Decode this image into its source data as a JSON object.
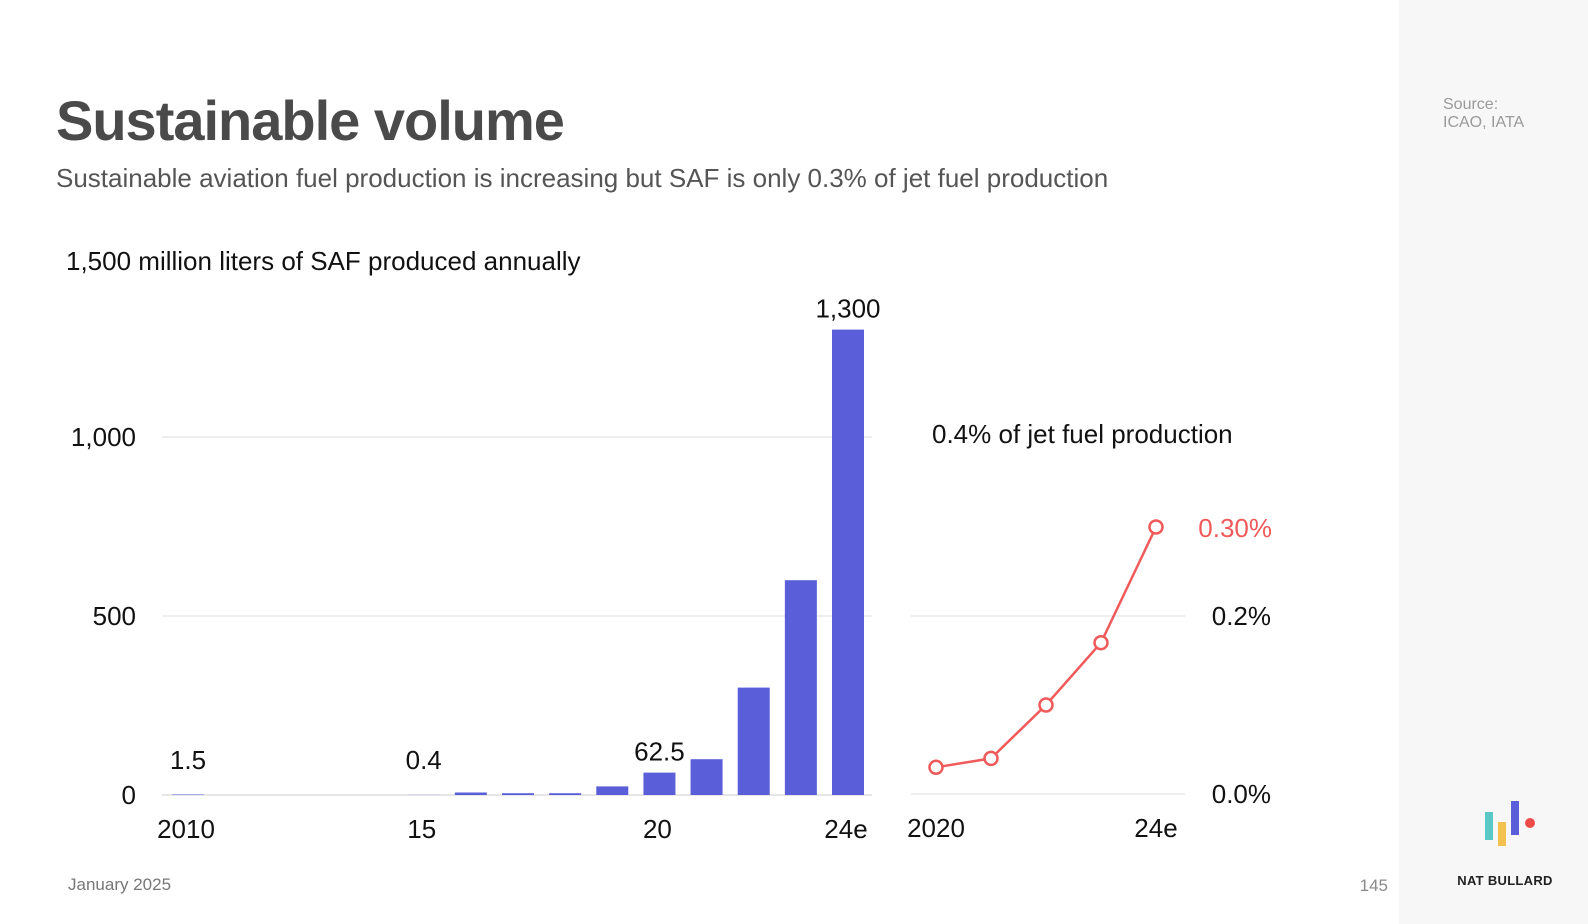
{
  "page": {
    "title": "Sustainable volume",
    "subtitle": "Sustainable aviation fuel production is increasing but SAF is only 0.3% of jet fuel production",
    "source_line1": "Source:",
    "source_line2": "ICAO, IATA",
    "date": "January 2025",
    "page_number": "145",
    "brand": "NAT BULLARD",
    "colors": {
      "bar": "#5a5fd9",
      "line": "#f05a5a",
      "grid": "#dddddd",
      "text": "#111111"
    }
  },
  "chart_data": [
    {
      "type": "bar",
      "title": "1,500 million liters of SAF produced annually",
      "categories": [
        "2010",
        "2011",
        "2012",
        "2013",
        "2014",
        "2015",
        "2016",
        "2017",
        "2018",
        "2019",
        "2020",
        "2021",
        "2022",
        "2023",
        "2024e"
      ],
      "values": [
        1.5,
        0,
        0,
        0,
        0,
        0.4,
        7,
        5,
        5,
        24,
        62.5,
        100,
        300,
        600,
        1300
      ],
      "tick_labels": [
        "2010",
        "15",
        "20",
        "24e"
      ],
      "tick_categories": [
        "2010",
        "2015",
        "2020",
        "2024e"
      ],
      "y_ticks": [
        "0",
        "500",
        "1,000"
      ],
      "y_tick_values": [
        0,
        500,
        1000
      ],
      "ylim": [
        0,
        1500
      ],
      "grid": true,
      "data_labels": [
        {
          "category": "2010",
          "text": "1.5"
        },
        {
          "category": "2015",
          "text": "0.4"
        },
        {
          "category": "2020",
          "text": "62.5"
        },
        {
          "category": "2024e",
          "text": "1,300"
        }
      ]
    },
    {
      "type": "line",
      "title": "0.4% of jet fuel production",
      "x": [
        "2020",
        "2021",
        "2022",
        "2023",
        "2024e"
      ],
      "values": [
        0.03,
        0.04,
        0.1,
        0.17,
        0.3
      ],
      "tick_labels": [
        "2020",
        "24e"
      ],
      "tick_x": [
        "2020",
        "2024e"
      ],
      "y_ticks": [
        "0.0%",
        "0.2%"
      ],
      "y_tick_values": [
        0,
        0.2
      ],
      "ylim": [
        0,
        0.4
      ],
      "grid": true,
      "end_label": "0.30%"
    }
  ]
}
